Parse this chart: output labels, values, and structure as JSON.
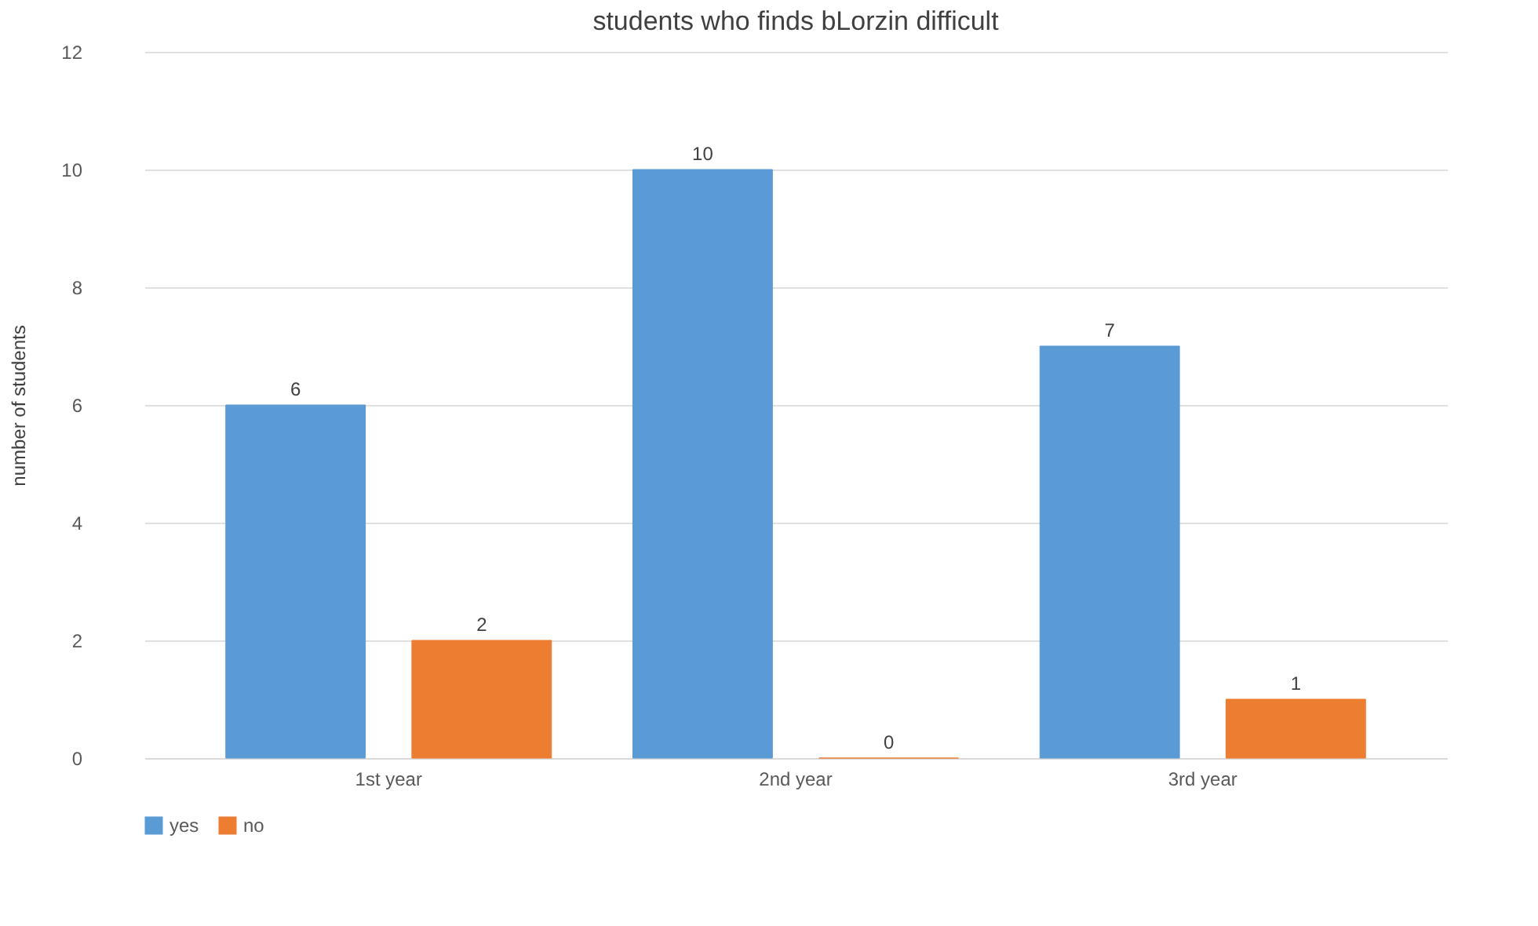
{
  "chart_data": {
    "type": "bar",
    "title": "students who finds bLorzin difficult",
    "ylabel": "number of students",
    "categories": [
      "1st year",
      "2nd year",
      "3rd year"
    ],
    "series": [
      {
        "name": "yes",
        "color": "#5b9bd5",
        "values": [
          6,
          10,
          7
        ]
      },
      {
        "name": "no",
        "color": "#ed7d31",
        "values": [
          2,
          0,
          1
        ]
      }
    ],
    "ylim": [
      0,
      12
    ],
    "yticks": [
      0,
      2,
      4,
      6,
      8,
      10,
      12
    ],
    "grid": "y",
    "legend": "bottom",
    "data_labels": true
  }
}
